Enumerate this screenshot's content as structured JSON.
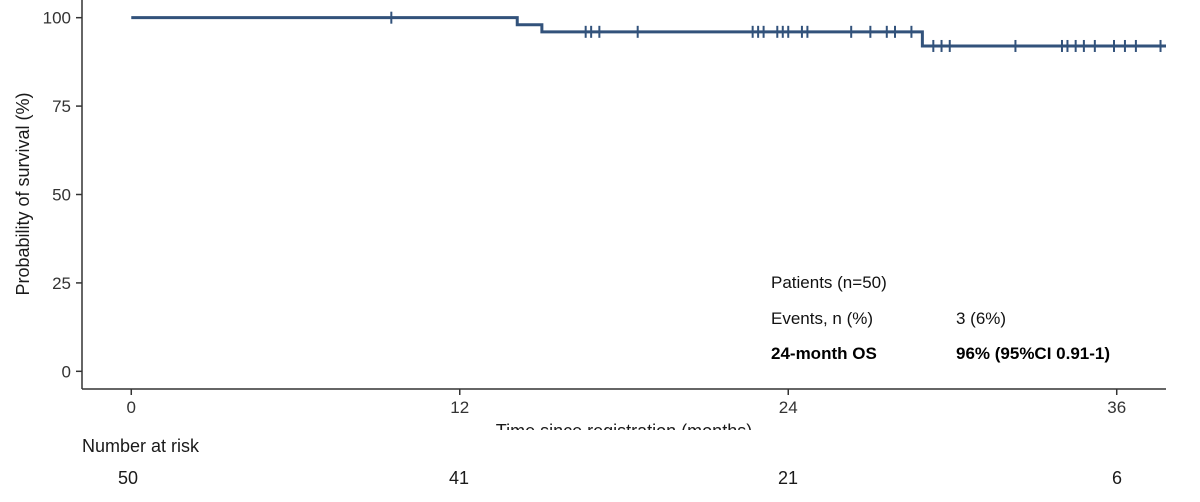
{
  "chart_data": {
    "type": "line",
    "title": "",
    "xlabel": "Time since registration (months)",
    "ylabel": "Probability of survival (%)",
    "xlim": [
      -1.8,
      37.8
    ],
    "ylim": [
      -5,
      105
    ],
    "x_ticks": [
      0,
      12,
      24,
      36
    ],
    "y_ticks": [
      0,
      25,
      50,
      75,
      100
    ],
    "grid": false,
    "color": "#32527b",
    "series": [
      {
        "name": "",
        "steps": [
          {
            "x": 0,
            "y": 100
          },
          {
            "x": 14.1,
            "y": 98
          },
          {
            "x": 15.0,
            "y": 96
          },
          {
            "x": 28.9,
            "y": 92
          }
        ],
        "x_end": 37.8,
        "censored": [
          {
            "x": 9.5,
            "y": 100
          },
          {
            "x": 16.6,
            "y": 96
          },
          {
            "x": 16.8,
            "y": 96
          },
          {
            "x": 17.1,
            "y": 96
          },
          {
            "x": 18.5,
            "y": 96
          },
          {
            "x": 22.7,
            "y": 96
          },
          {
            "x": 22.9,
            "y": 96
          },
          {
            "x": 23.1,
            "y": 96
          },
          {
            "x": 23.6,
            "y": 96
          },
          {
            "x": 23.8,
            "y": 96
          },
          {
            "x": 24.0,
            "y": 96
          },
          {
            "x": 24.5,
            "y": 96
          },
          {
            "x": 24.7,
            "y": 96
          },
          {
            "x": 26.3,
            "y": 96
          },
          {
            "x": 27.0,
            "y": 96
          },
          {
            "x": 27.6,
            "y": 96
          },
          {
            "x": 27.9,
            "y": 96
          },
          {
            "x": 28.5,
            "y": 96
          },
          {
            "x": 29.3,
            "y": 92
          },
          {
            "x": 29.6,
            "y": 92
          },
          {
            "x": 29.9,
            "y": 92
          },
          {
            "x": 32.3,
            "y": 92
          },
          {
            "x": 34.0,
            "y": 92
          },
          {
            "x": 34.2,
            "y": 92
          },
          {
            "x": 34.5,
            "y": 92
          },
          {
            "x": 34.8,
            "y": 92
          },
          {
            "x": 35.2,
            "y": 92
          },
          {
            "x": 35.9,
            "y": 92
          },
          {
            "x": 36.3,
            "y": 92
          },
          {
            "x": 36.7,
            "y": 92
          },
          {
            "x": 37.6,
            "y": 92
          }
        ]
      }
    ],
    "legend_table": {
      "patients_label": "Patients (n=50)",
      "events_label": "Events, n (%)",
      "events_value": "3 (6%)",
      "os_label": "24-month OS",
      "os_value": "96% (95%CI 0.91-1)"
    },
    "risk_table": {
      "title": "Number at risk",
      "times": [
        0,
        12,
        24,
        36
      ],
      "counts": [
        "50",
        "41",
        "21",
        "6"
      ]
    }
  }
}
